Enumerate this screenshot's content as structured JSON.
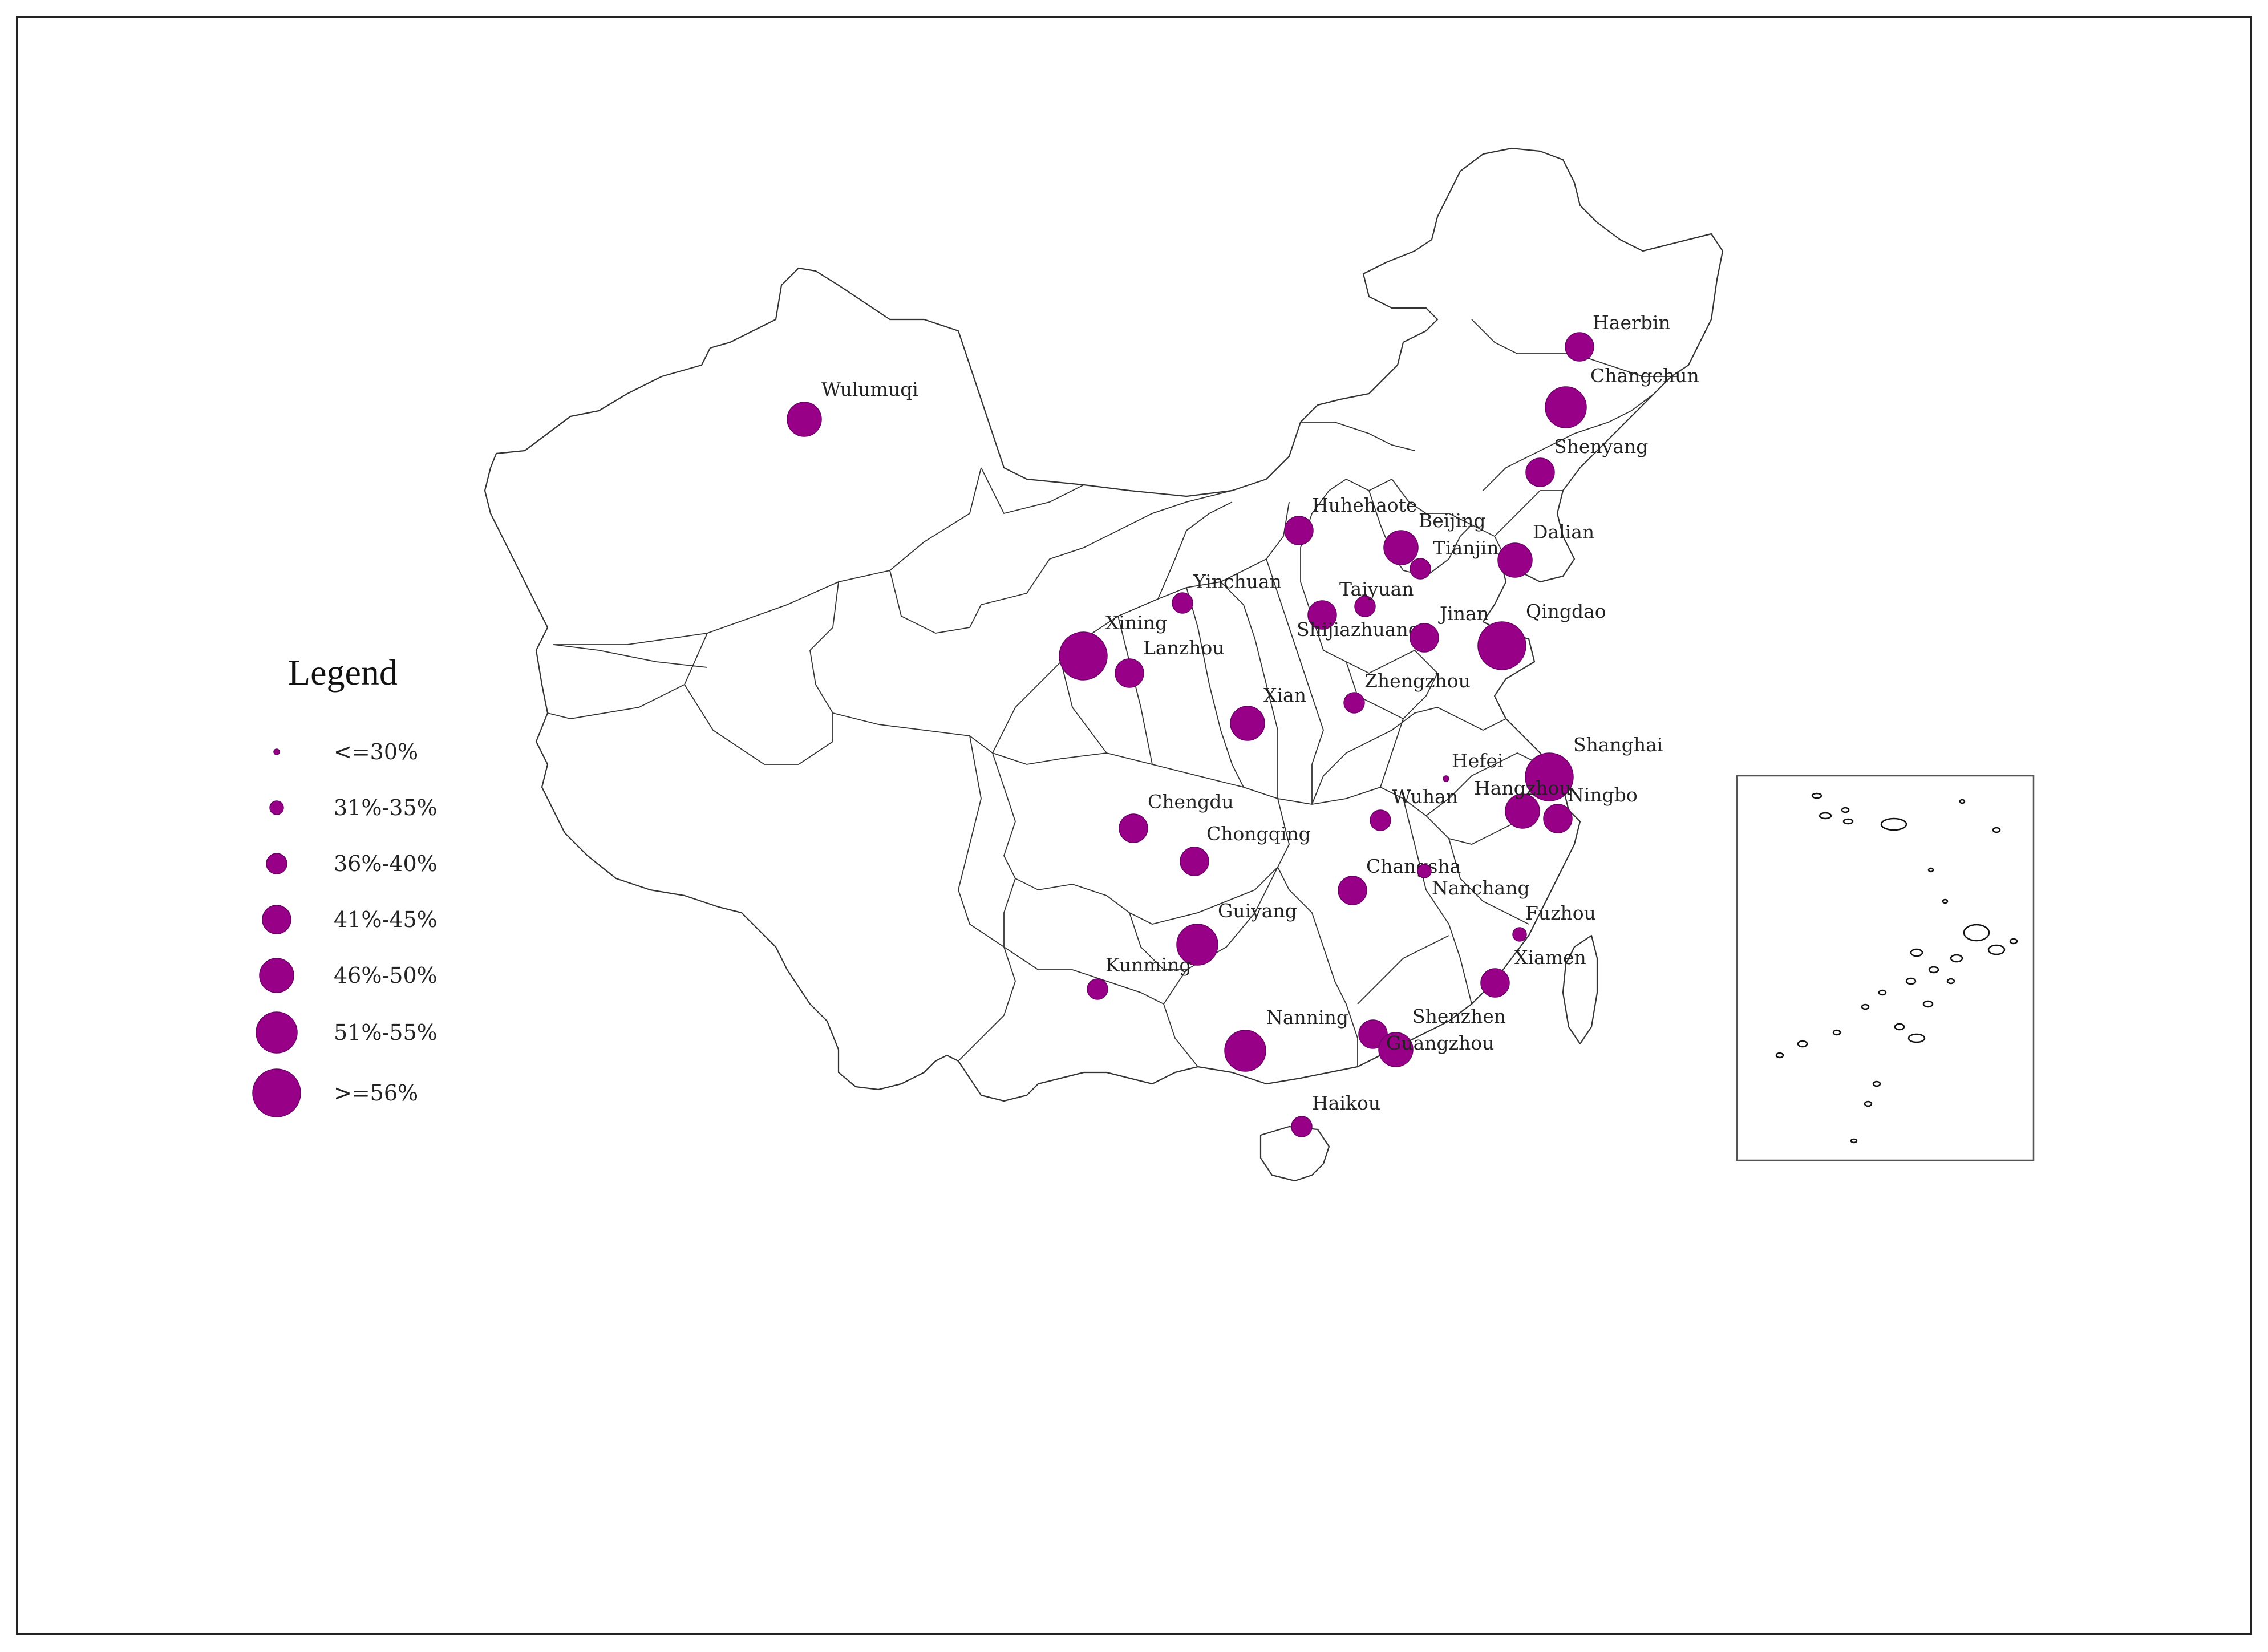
{
  "map": {
    "marker_color": "#990088",
    "cities": [
      {
        "name": "Haerbin",
        "category": 3
      },
      {
        "name": "Changchun",
        "category": 5
      },
      {
        "name": "Shenyang",
        "category": 3
      },
      {
        "name": "Wulumuqi",
        "category": 4
      },
      {
        "name": "Huhehaote",
        "category": 3
      },
      {
        "name": "Beijing",
        "category": 4
      },
      {
        "name": "Tianjin",
        "category": 2
      },
      {
        "name": "Dalian",
        "category": 4
      },
      {
        "name": "Yinchuan",
        "category": 2
      },
      {
        "name": "Taiyuan",
        "category": 2
      },
      {
        "name": "Shijiazhuang",
        "category": 3
      },
      {
        "name": "Jinan",
        "category": 3
      },
      {
        "name": "Qingdao",
        "category": 6
      },
      {
        "name": "Xining",
        "category": 6
      },
      {
        "name": "Lanzhou",
        "category": 3
      },
      {
        "name": "Xian",
        "category": 4
      },
      {
        "name": "Zhengzhou",
        "category": 2
      },
      {
        "name": "Shanghai",
        "category": 6
      },
      {
        "name": "Hefei",
        "category": 0
      },
      {
        "name": "Hangzhou",
        "category": 4
      },
      {
        "name": "Ningbo",
        "category": 3
      },
      {
        "name": "Chengdu",
        "category": 3
      },
      {
        "name": "Wuhan",
        "category": 2
      },
      {
        "name": "Chongqing",
        "category": 3
      },
      {
        "name": "Changsha",
        "category": 3
      },
      {
        "name": "Nanchang",
        "category": 1
      },
      {
        "name": "Fuzhou",
        "category": 1
      },
      {
        "name": "Guiyang",
        "category": 5
      },
      {
        "name": "Xiamen",
        "category": 3
      },
      {
        "name": "Kunming",
        "category": 2
      },
      {
        "name": "Nanning",
        "category": 5
      },
      {
        "name": "Shenzhen",
        "category": 3
      },
      {
        "name": "Guangzhou",
        "category": 4
      },
      {
        "name": "Haikou",
        "category": 2
      }
    ]
  },
  "legend": {
    "title": "Legend",
    "items": [
      {
        "label": "<=30%"
      },
      {
        "label": "31%-35%"
      },
      {
        "label": "36%-40%"
      },
      {
        "label": "41%-45%"
      },
      {
        "label": "46%-50%"
      },
      {
        "label": "51%-55%"
      },
      {
        "label": ">=56%"
      }
    ]
  }
}
